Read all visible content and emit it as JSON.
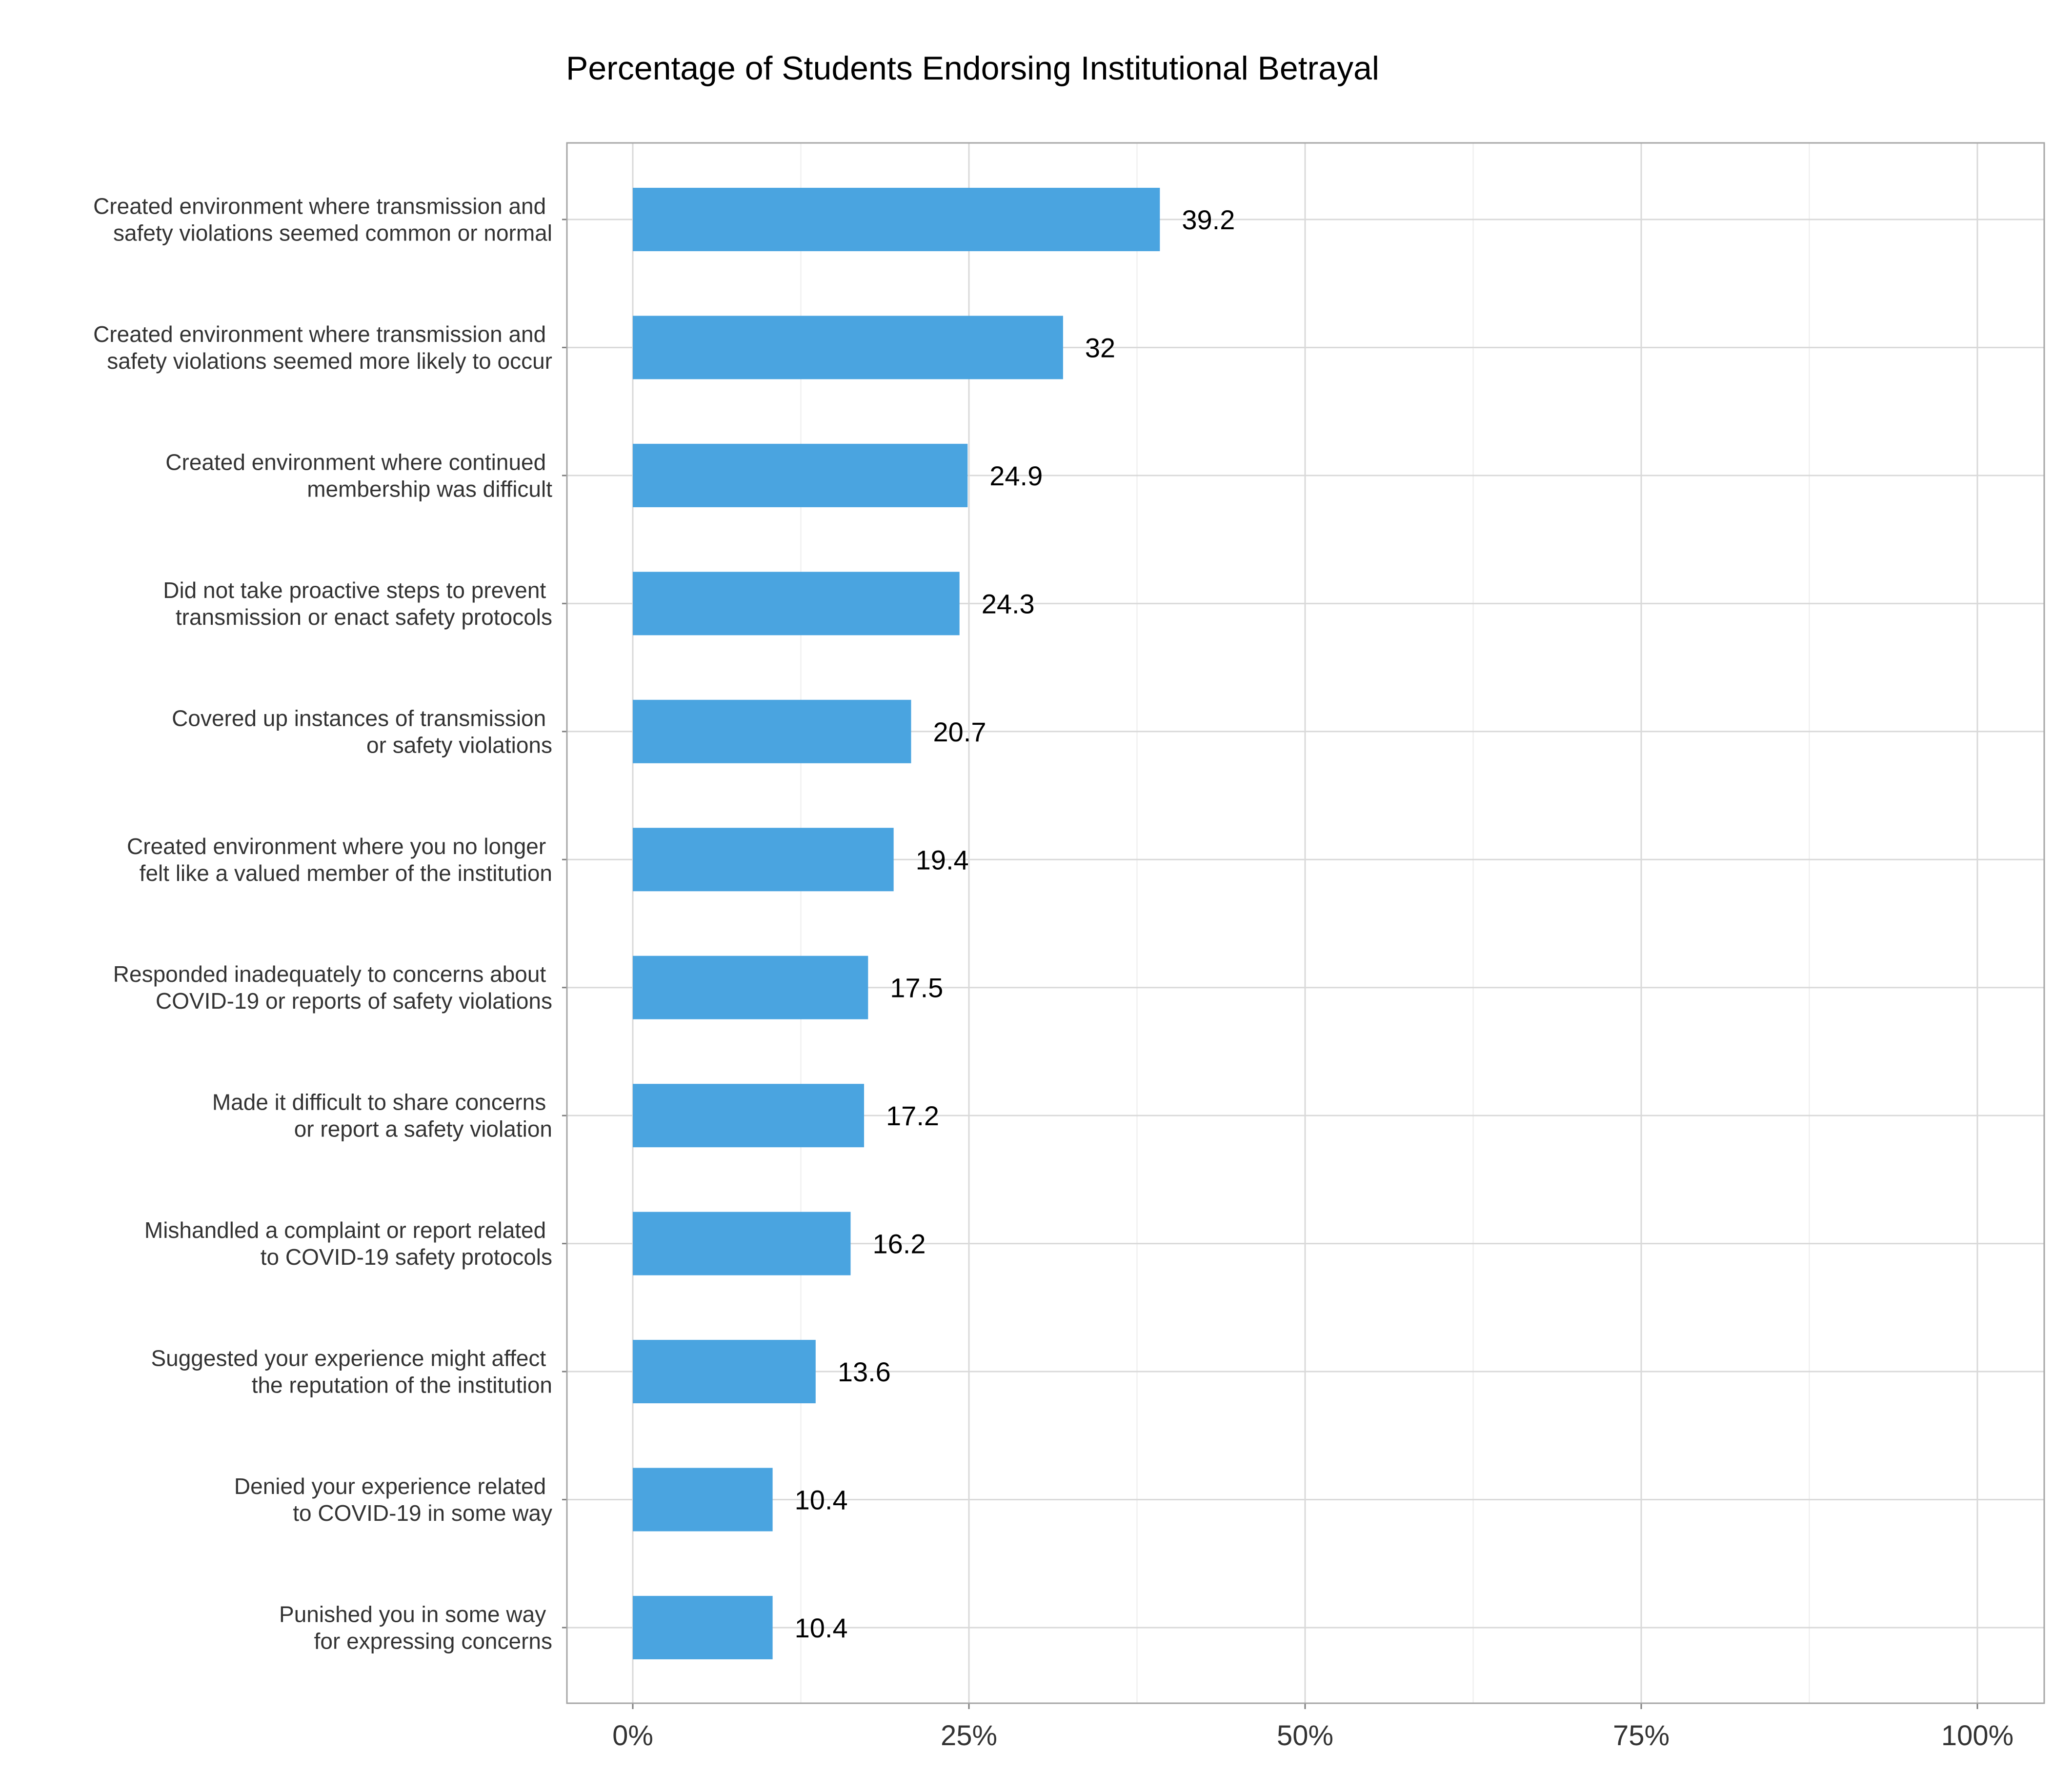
{
  "chart_data": {
    "type": "bar",
    "orientation": "horizontal",
    "title": "Percentage of Students Endorsing Institutional Betrayal",
    "xlabel": "",
    "ylabel": "",
    "xlim": [
      0,
      100
    ],
    "x_ticks": [
      0,
      25,
      50,
      75,
      100
    ],
    "x_tick_labels": [
      "0%",
      "25%",
      "50%",
      "75%",
      "100%"
    ],
    "grid": true,
    "legend": "none",
    "bar_color": "#4aa4e0",
    "categories": [
      [
        "Created environment where transmission and ",
        "safety violations seemed common or normal"
      ],
      [
        "Created environment where transmission and ",
        "safety violations seemed more likely to occur"
      ],
      [
        "Created environment where continued ",
        "membership was difficult"
      ],
      [
        "Did not take proactive steps to prevent ",
        "transmission or enact safety protocols"
      ],
      [
        "Covered up instances of transmission ",
        "or safety violations"
      ],
      [
        "Created environment where you no longer ",
        "felt like a valued member of the institution"
      ],
      [
        "Responded inadequately to concerns about ",
        "COVID-19 or reports of safety violations"
      ],
      [
        "Made it difficult to share concerns ",
        "or report a safety violation"
      ],
      [
        "Mishandled a complaint or report related ",
        "to COVID-19 safety protocols"
      ],
      [
        "Suggested your experience might affect ",
        "the reputation of the institution"
      ],
      [
        "Denied your experience related ",
        "to COVID-19 in some way"
      ],
      [
        "Punished you in some way ",
        "for expressing concerns"
      ]
    ],
    "values": [
      39.2,
      32,
      24.9,
      24.3,
      20.7,
      19.4,
      17.5,
      17.2,
      16.2,
      13.6,
      10.4,
      10.4
    ],
    "value_labels": [
      "39.2",
      "32",
      "24.9",
      "24.3",
      "20.7",
      "19.4",
      "17.5",
      "17.2",
      "16.2",
      "13.6",
      "10.4",
      "10.4"
    ]
  }
}
